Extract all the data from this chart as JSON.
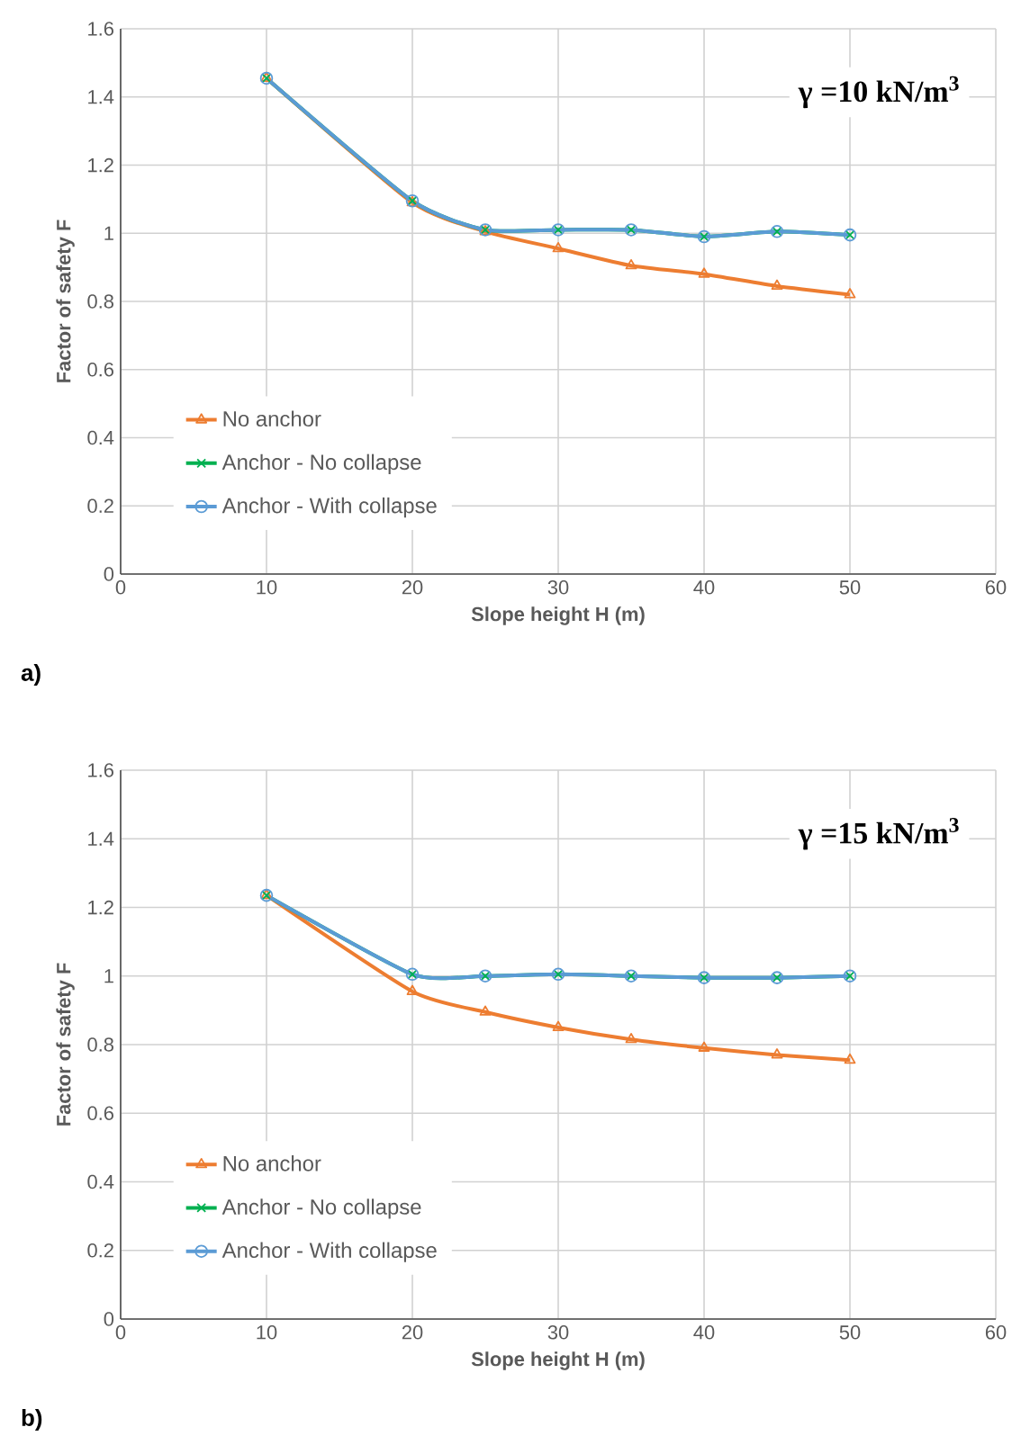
{
  "chart_data": [
    {
      "type": "line",
      "xlabel": "Slope height H (m)",
      "ylabel": "Factor of safety F",
      "annotations": [
        "γ =10 kN/m$^{3}$",
        "a)"
      ],
      "x": [
        10,
        20,
        25,
        30,
        35,
        40,
        45,
        50
      ],
      "series": [
        {
          "name": "No anchor",
          "color": "#ed7d31",
          "marker": "triangle",
          "values": [
            1.455,
            1.09,
            1.005,
            0.955,
            0.905,
            0.88,
            0.845,
            0.82
          ]
        },
        {
          "name": "Anchor - No collapse",
          "color": "#00b050",
          "marker": "cross",
          "values": [
            1.455,
            1.095,
            1.01,
            1.01,
            1.01,
            0.99,
            1.005,
            0.995
          ]
        },
        {
          "name": "Anchor - With collapse",
          "color": "#5b9bd5",
          "marker": "circle",
          "values": [
            1.455,
            1.095,
            1.01,
            1.01,
            1.01,
            0.99,
            1.005,
            0.995
          ]
        }
      ],
      "xlim": [
        0,
        60
      ],
      "xticks": [
        0,
        10,
        20,
        30,
        40,
        50,
        60
      ],
      "ylim": [
        0,
        1.6
      ],
      "yticks": [
        0,
        0.2,
        0.4,
        0.6,
        0.8,
        1,
        1.2,
        1.4,
        1.6
      ],
      "grid": true,
      "legend": "bottom left"
    },
    {
      "type": "line",
      "xlabel": "Slope height H (m)",
      "ylabel": "Factor of safety F",
      "annotations": [
        "γ =15 kN/m$^{3}$",
        "b)"
      ],
      "x": [
        10,
        20,
        25,
        30,
        35,
        40,
        45,
        50
      ],
      "series": [
        {
          "name": "No anchor",
          "color": "#ed7d31",
          "marker": "triangle",
          "values": [
            1.235,
            0.955,
            0.895,
            0.85,
            0.815,
            0.79,
            0.77,
            0.755
          ]
        },
        {
          "name": "Anchor - No collapse",
          "color": "#00b050",
          "marker": "cross",
          "values": [
            1.235,
            1.005,
            1.0,
            1.005,
            1.0,
            0.995,
            0.995,
            1.0
          ]
        },
        {
          "name": "Anchor - With collapse",
          "color": "#5b9bd5",
          "marker": "circle",
          "values": [
            1.235,
            1.005,
            1.0,
            1.005,
            1.0,
            0.995,
            0.995,
            1.0
          ]
        }
      ],
      "xlim": [
        0,
        60
      ],
      "xticks": [
        0,
        10,
        20,
        30,
        40,
        50,
        60
      ],
      "ylim": [
        0,
        1.6
      ],
      "yticks": [
        0,
        0.2,
        0.4,
        0.6,
        0.8,
        1,
        1.2,
        1.4,
        1.6
      ],
      "grid": true,
      "legend": "bottom left"
    }
  ]
}
